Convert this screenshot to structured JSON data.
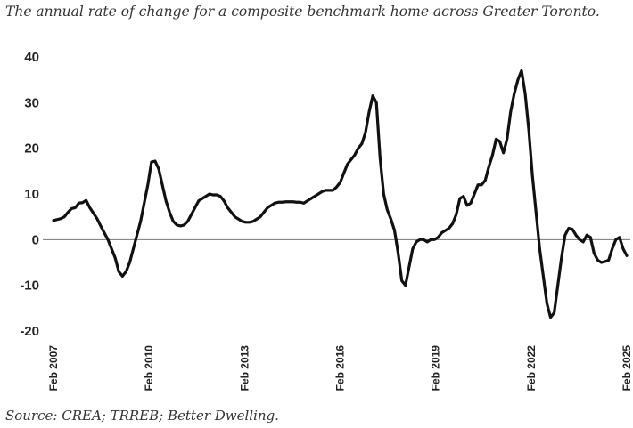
{
  "chart_data": {
    "type": "line",
    "subtitle": "The annual rate of change for a composite benchmark home across Greater Toronto.",
    "source": "Source: CREA; TRREB; Better Dwelling.",
    "xlabel": "",
    "ylabel": "",
    "ylim": [
      -20,
      40
    ],
    "yticks": [
      "40",
      "30",
      "20",
      "10",
      "0",
      "-10",
      "-20"
    ],
    "xticks": [
      "Feb 2007",
      "Feb 2010",
      "Feb 2013",
      "Feb 2016",
      "Feb 2019",
      "Feb 2022",
      "Feb 2025"
    ],
    "grid": false,
    "zero_line": true,
    "line_color": "#111111",
    "series": [
      {
        "values": [
          4.2,
          4.4,
          4.6,
          5.0,
          6.0,
          6.8,
          7.0,
          8.0,
          8.1,
          8.6,
          7.0,
          5.8,
          4.6,
          3.0,
          1.5,
          0.0,
          -2.0,
          -4.0,
          -7.0,
          -8.0,
          -7.0,
          -5.0,
          -2.0,
          1.0,
          4.0,
          8.0,
          12.0,
          17.0,
          17.2,
          15.5,
          12.0,
          8.5,
          6.0,
          4.0,
          3.2,
          3.0,
          3.2,
          4.0,
          5.5,
          7.0,
          8.5,
          9.0,
          9.5,
          10.0,
          9.8,
          9.8,
          9.5,
          8.5,
          7.0,
          6.0,
          5.0,
          4.5,
          4.0,
          3.8,
          3.8,
          4.0,
          4.5,
          5.0,
          6.0,
          7.0,
          7.5,
          8.0,
          8.2,
          8.2,
          8.3,
          8.3,
          8.3,
          8.2,
          8.2,
          8.0,
          8.5,
          9.0,
          9.5,
          10.0,
          10.5,
          10.8,
          10.8,
          10.8,
          11.5,
          12.5,
          14.5,
          16.5,
          17.5,
          18.5,
          20.0,
          21.0,
          23.5,
          28.0,
          31.5,
          30.0,
          18.0,
          10.0,
          6.5,
          4.5,
          2.0,
          -3.0,
          -9.0,
          -10.0,
          -6.0,
          -2.0,
          -0.5,
          0.0,
          0.0,
          -0.5,
          0.0,
          0.0,
          0.5,
          1.5,
          2.0,
          2.5,
          3.5,
          5.5,
          9.0,
          9.5,
          7.5,
          8.0,
          10.0,
          12.0,
          12.0,
          13.0,
          16.0,
          18.5,
          22.0,
          21.5,
          19.0,
          22.0,
          28.0,
          32.0,
          35.0,
          37.0,
          32.0,
          24.0,
          14.0,
          6.0,
          -2.0,
          -8.0,
          -14.0,
          -17.0,
          -16.0,
          -10.0,
          -4.0,
          1.0,
          2.5,
          2.3,
          1.0,
          0.0,
          -0.5,
          1.0,
          0.5,
          -3.0,
          -4.5,
          -5.0,
          -4.8,
          -4.5,
          -2.0,
          0.0,
          0.5,
          -2.0,
          -3.5
        ]
      }
    ]
  }
}
